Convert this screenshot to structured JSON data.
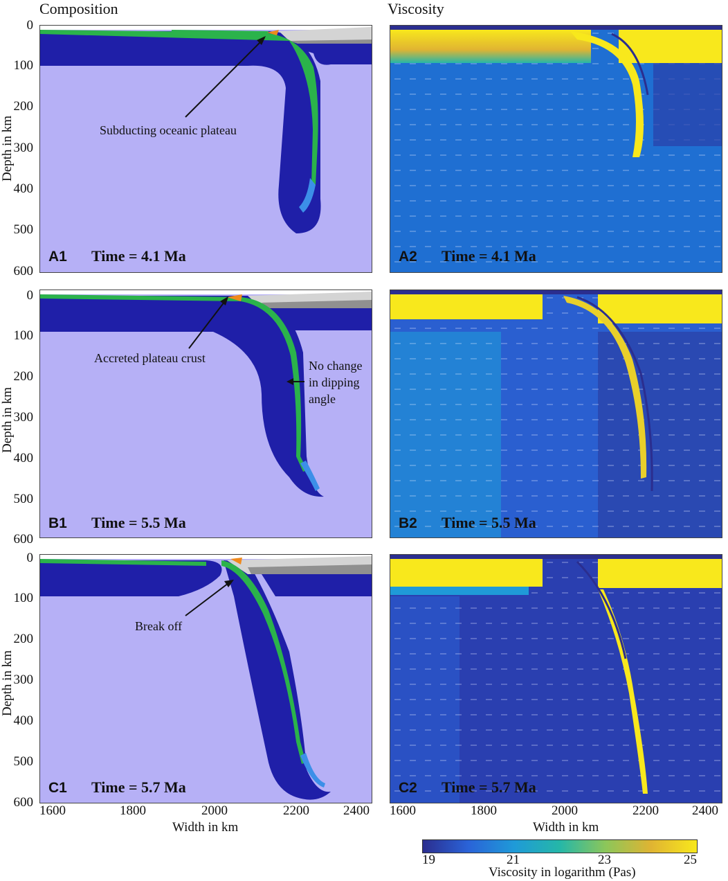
{
  "column_titles": {
    "left": "Composition",
    "right": "Viscosity"
  },
  "y_axis": {
    "label": "Depth in km",
    "ticks": [
      "0",
      "100",
      "200",
      "300",
      "400",
      "500",
      "600"
    ]
  },
  "x_axis": {
    "label": "Width in km",
    "ticks": [
      "1600",
      "1800",
      "2000",
      "2200",
      "2400"
    ]
  },
  "panels": [
    {
      "id": "A1",
      "label": "A1",
      "time": "Time = 4.1 Ma",
      "annotations": [
        "Subducting oceanic plateau"
      ]
    },
    {
      "id": "A2",
      "label": "A2",
      "time": "Time = 4.1 Ma"
    },
    {
      "id": "B1",
      "label": "B1",
      "time": "Time = 5.5 Ma",
      "annotations": [
        "Accreted plateau crust",
        "No change",
        "in dipping",
        "angle"
      ]
    },
    {
      "id": "B2",
      "label": "B2",
      "time": "Time = 5.5 Ma"
    },
    {
      "id": "C1",
      "label": "C1",
      "time": "Time = 5.7 Ma",
      "annotations": [
        "Break off"
      ]
    },
    {
      "id": "C2",
      "label": "C2",
      "time": "Time = 5.7 Ma"
    }
  ],
  "colorbar": {
    "label": "Viscosity in logarithm (Pas)",
    "ticks": [
      "19",
      "21",
      "23",
      "25"
    ],
    "min": 19,
    "max": 25,
    "colors": [
      "#2b2e8f",
      "#2a63d8",
      "#1f9ad8",
      "#25b7a8",
      "#8cc65a",
      "#e0b432",
      "#f8e81c"
    ]
  },
  "colors": {
    "mantle": "#b6b0f6",
    "oceanic_lithosphere": "#1f1fa8",
    "plateau_crust": "#2bb34b",
    "continental_upper": "#d4d4d4",
    "continental_lower": "#909090",
    "sediment": "#f08a1c"
  }
}
